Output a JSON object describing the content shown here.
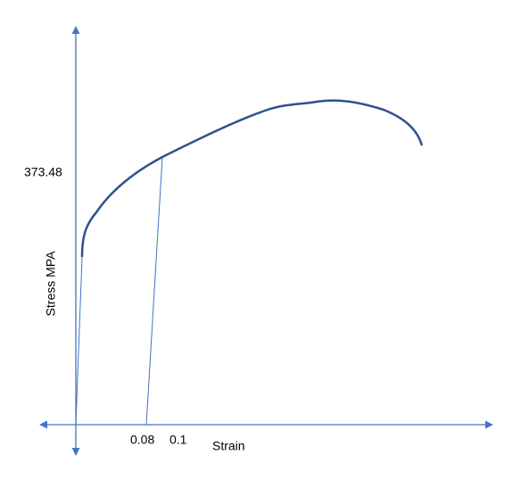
{
  "y_axis": {
    "label": "Stress MPA",
    "tick": "373.48"
  },
  "x_axis": {
    "label": "Strain",
    "ticks": [
      "0.08",
      "0.1"
    ]
  }
}
